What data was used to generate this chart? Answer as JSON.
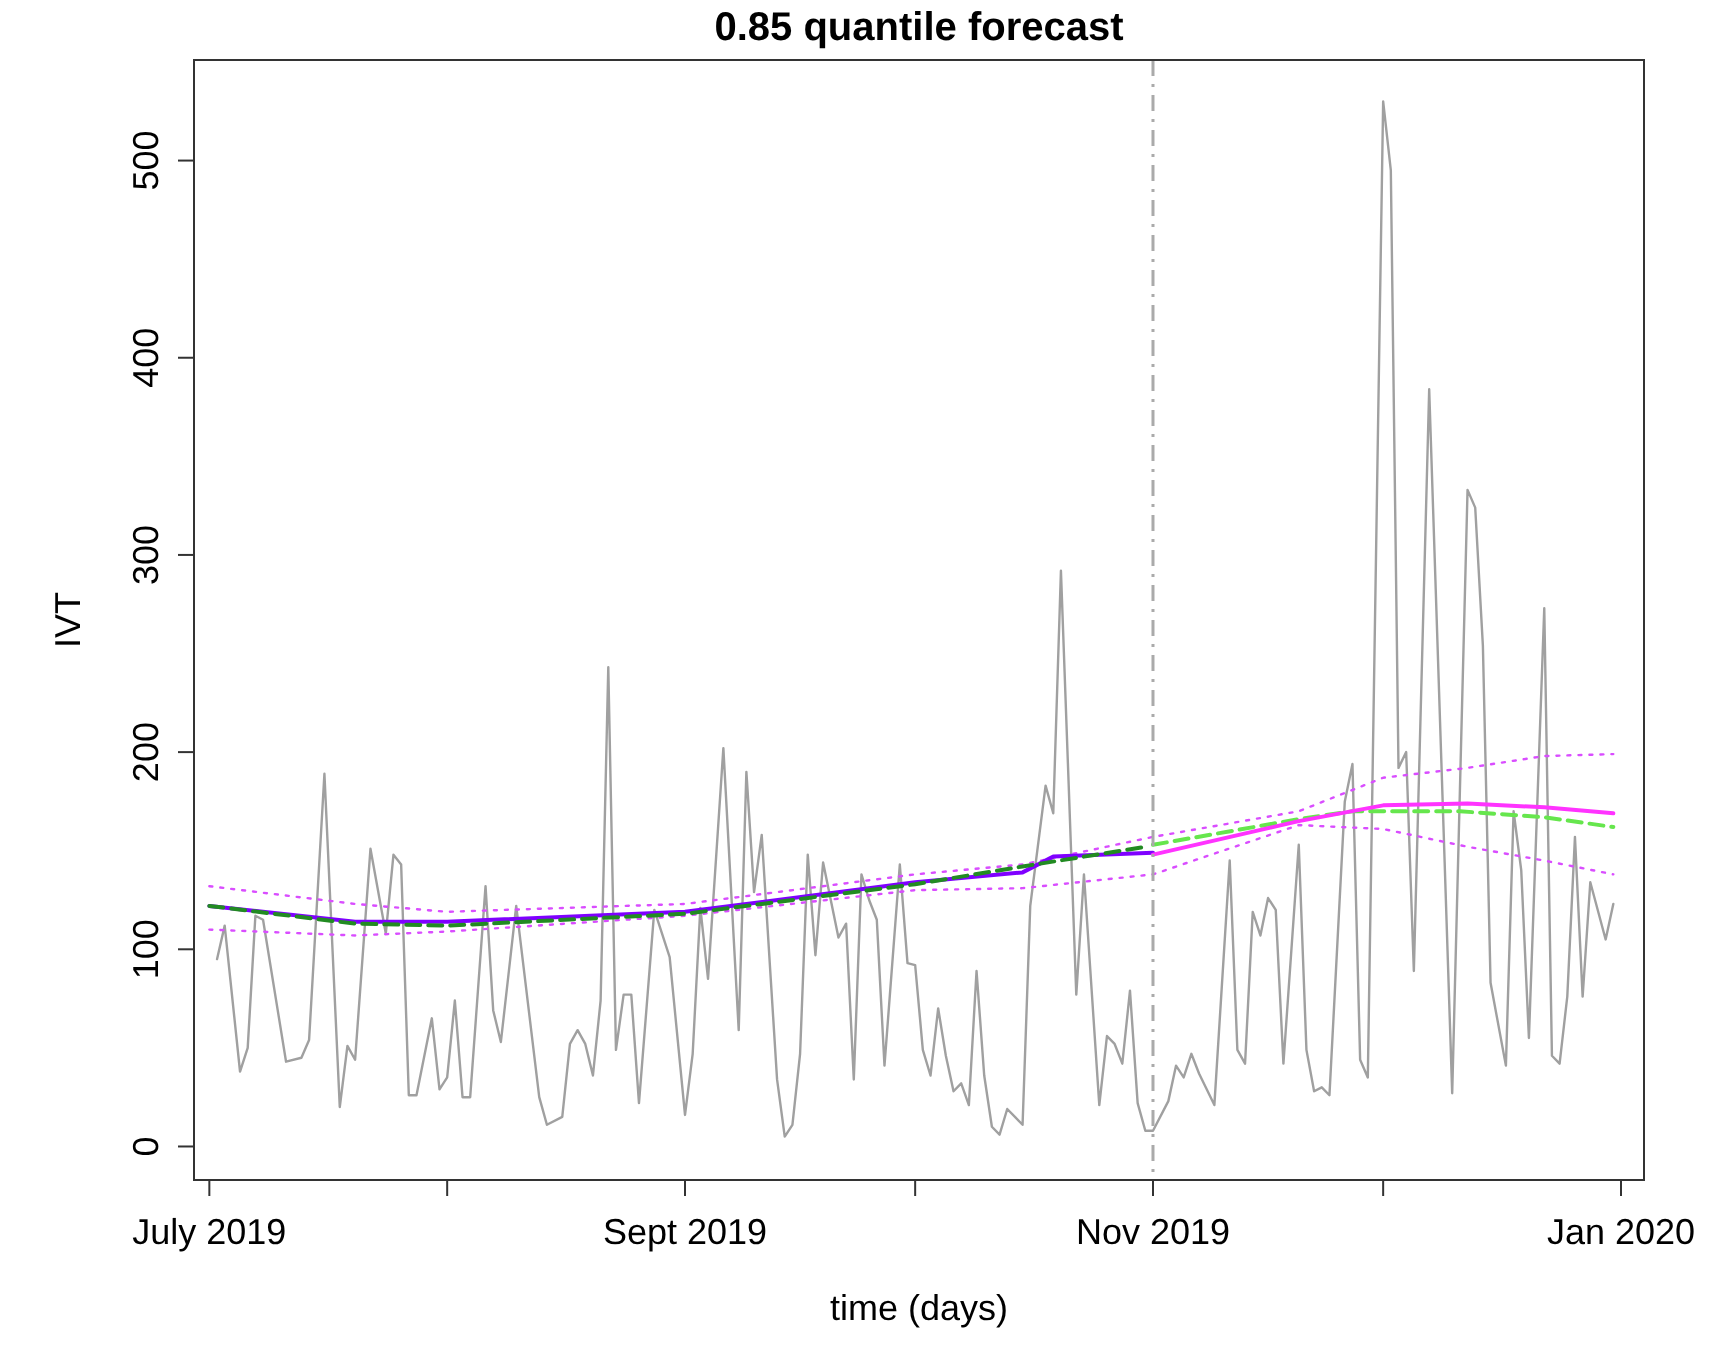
{
  "chart_data": {
    "type": "line",
    "title": "0.85 quantile forecast",
    "xlabel": "time (days)",
    "ylabel": "IVT",
    "xlim": [
      "2019-06-29",
      "2020-01-04"
    ],
    "ylim": [
      -17,
      551
    ],
    "xticks": [
      {
        "value": "2019-07-01",
        "label": "July 2019"
      },
      {
        "value": "2019-08-01",
        "label": null
      },
      {
        "value": "2019-09-01",
        "label": "Sept 2019"
      },
      {
        "value": "2019-10-01",
        "label": null
      },
      {
        "value": "2019-11-01",
        "label": "Nov 2019"
      },
      {
        "value": "2019-12-01",
        "label": null
      },
      {
        "value": "2020-01-01",
        "label": "Jan 2020"
      }
    ],
    "yticks": [
      0,
      100,
      200,
      300,
      400,
      500
    ],
    "ref_lines": [
      {
        "axis": "x",
        "value": "2019-11-01",
        "color": "#aaaaaa",
        "line_style": "dashdot"
      }
    ],
    "series": [
      {
        "color": "#a0a0a0",
        "line_style": "solid",
        "x": [
          "2019-07-02",
          "2019-07-03",
          "2019-07-05",
          "2019-07-06",
          "2019-07-07",
          "2019-07-08",
          "2019-07-11",
          "2019-07-13",
          "2019-07-14",
          "2019-07-16",
          "2019-07-18",
          "2019-07-19",
          "2019-07-20",
          "2019-07-22",
          "2019-07-24",
          "2019-07-25",
          "2019-07-26",
          "2019-07-27",
          "2019-07-28",
          "2019-07-30",
          "2019-07-31",
          "2019-08-01",
          "2019-08-02",
          "2019-08-03",
          "2019-08-04",
          "2019-08-06",
          "2019-08-07",
          "2019-08-08",
          "2019-08-10",
          "2019-08-13",
          "2019-08-14",
          "2019-08-16",
          "2019-08-17",
          "2019-08-18",
          "2019-08-19",
          "2019-08-20",
          "2019-08-21",
          "2019-08-22",
          "2019-08-23",
          "2019-08-24",
          "2019-08-25",
          "2019-08-26",
          "2019-08-28",
          "2019-08-30",
          "2019-09-01",
          "2019-09-02",
          "2019-09-03",
          "2019-09-04",
          "2019-09-06",
          "2019-09-08",
          "2019-09-09",
          "2019-09-10",
          "2019-09-11",
          "2019-09-13",
          "2019-09-14",
          "2019-09-15",
          "2019-09-16",
          "2019-09-17",
          "2019-09-18",
          "2019-09-19",
          "2019-09-21",
          "2019-09-22",
          "2019-09-23",
          "2019-09-24",
          "2019-09-25",
          "2019-09-26",
          "2019-09-27",
          "2019-09-29",
          "2019-09-30",
          "2019-10-01",
          "2019-10-02",
          "2019-10-03",
          "2019-10-04",
          "2019-10-05",
          "2019-10-06",
          "2019-10-07",
          "2019-10-08",
          "2019-10-09",
          "2019-10-10",
          "2019-10-11",
          "2019-10-12",
          "2019-10-13",
          "2019-10-15",
          "2019-10-16",
          "2019-10-18",
          "2019-10-19",
          "2019-10-20",
          "2019-10-22",
          "2019-10-23",
          "2019-10-25",
          "2019-10-26",
          "2019-10-27",
          "2019-10-28",
          "2019-10-29",
          "2019-10-30",
          "2019-10-31",
          "2019-11-01",
          "2019-11-03",
          "2019-11-04",
          "2019-11-05",
          "2019-11-06",
          "2019-11-07",
          "2019-11-08",
          "2019-11-09",
          "2019-11-11",
          "2019-11-12",
          "2019-11-13",
          "2019-11-14",
          "2019-11-15",
          "2019-11-16",
          "2019-11-17",
          "2019-11-18",
          "2019-11-20",
          "2019-11-21",
          "2019-11-22",
          "2019-11-23",
          "2019-11-24",
          "2019-11-26",
          "2019-11-27",
          "2019-11-28",
          "2019-11-29",
          "2019-12-01",
          "2019-12-02",
          "2019-12-03",
          "2019-12-04",
          "2019-12-05",
          "2019-12-07",
          "2019-12-10",
          "2019-12-12",
          "2019-12-13",
          "2019-12-14",
          "2019-12-15",
          "2019-12-17",
          "2019-12-18",
          "2019-12-19",
          "2019-12-20",
          "2019-12-22",
          "2019-12-23",
          "2019-12-24",
          "2019-12-25",
          "2019-12-26",
          "2019-12-27",
          "2019-12-28",
          "2019-12-30",
          "2019-12-31"
        ],
        "values": [
          95,
          112,
          38,
          50,
          117,
          115,
          43,
          45,
          54,
          189,
          20,
          51,
          44,
          151,
          108,
          148,
          143,
          26,
          26,
          65,
          29,
          35,
          74,
          25,
          25,
          132,
          69,
          53,
          122,
          25,
          11,
          15,
          52,
          59,
          52,
          36,
          74,
          243,
          49,
          77,
          77,
          22,
          120,
          96,
          16,
          47,
          121,
          85,
          202,
          59,
          190,
          129,
          158,
          34,
          5,
          11,
          47,
          148,
          97,
          144,
          106,
          113,
          34,
          138,
          125,
          115,
          41,
          143,
          93,
          92,
          49,
          36,
          70,
          46,
          28,
          32,
          21,
          89,
          36,
          10,
          6,
          19,
          11,
          122,
          183,
          169,
          292,
          77,
          138,
          21,
          56,
          52,
          42,
          79,
          22,
          8,
          8,
          23,
          41,
          35,
          47,
          37,
          29,
          21,
          145,
          49,
          42,
          119,
          107,
          126,
          120,
          42,
          153,
          49,
          28,
          30,
          26,
          175,
          194,
          44,
          35,
          530,
          495,
          192,
          200,
          89,
          384,
          27,
          333,
          324,
          254,
          83,
          41,
          170,
          140,
          55,
          273,
          46,
          42,
          76,
          157,
          76,
          134,
          105,
          123
        ]
      },
      {
        "color": "#d94dff",
        "line_style": "dotted",
        "x": [
          "2019-07-01",
          "2019-07-20",
          "2019-08-01",
          "2019-09-01",
          "2019-10-01",
          "2019-10-15",
          "2019-11-01",
          "2019-11-20",
          "2019-12-01",
          "2019-12-12",
          "2019-12-22",
          "2019-12-31"
        ],
        "values": [
          132,
          123,
          119,
          123,
          138,
          143,
          157,
          170,
          187,
          192,
          198,
          199
        ]
      },
      {
        "color": "#d94dff",
        "line_style": "dotted",
        "x": [
          "2019-07-01",
          "2019-07-20",
          "2019-08-01",
          "2019-09-01",
          "2019-10-01",
          "2019-10-15",
          "2019-11-01",
          "2019-11-20",
          "2019-12-01",
          "2019-12-12",
          "2019-12-22",
          "2019-12-31"
        ],
        "values": [
          110,
          107,
          109,
          117,
          130,
          131,
          138,
          163,
          161,
          152,
          145,
          138
        ]
      },
      {
        "color": "#7f00ff",
        "line_style": "solid",
        "x": [
          "2019-07-01",
          "2019-07-20",
          "2019-08-01",
          "2019-09-01",
          "2019-10-01",
          "2019-10-15",
          "2019-10-19",
          "2019-11-01"
        ],
        "values": [
          122,
          114,
          114,
          119,
          134,
          139,
          147,
          149
        ]
      },
      {
        "color": "#228b22",
        "line_style": "dashed",
        "x": [
          "2019-07-01",
          "2019-07-20",
          "2019-08-01",
          "2019-09-01",
          "2019-10-01",
          "2019-10-15",
          "2019-10-31"
        ],
        "values": [
          122,
          113,
          112,
          118,
          133,
          142,
          152
        ]
      },
      {
        "color": "#66e64d",
        "line_style": "dashed",
        "x": [
          "2019-11-01",
          "2019-11-20",
          "2019-11-27",
          "2019-12-11",
          "2019-12-22",
          "2019-12-31"
        ],
        "values": [
          153,
          166,
          170,
          170,
          167,
          162
        ]
      },
      {
        "color": "#ff33ff",
        "line_style": "solid",
        "x": [
          "2019-11-01",
          "2019-11-20",
          "2019-12-01",
          "2019-12-12",
          "2019-12-22",
          "2019-12-31"
        ],
        "values": [
          148,
          165,
          173,
          174,
          172,
          169
        ]
      }
    ]
  }
}
